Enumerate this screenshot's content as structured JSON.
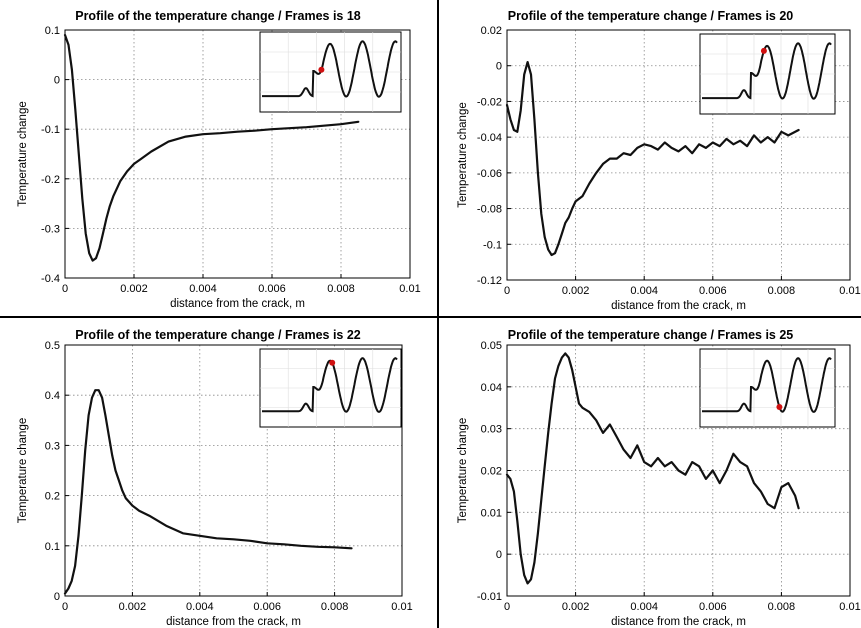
{
  "chart_data": [
    {
      "type": "line",
      "title": "Profile of the temperature change / Frames is 18",
      "xlabel": "distance from the crack, m",
      "ylabel": "Temperature change",
      "xlim": [
        0,
        0.01
      ],
      "ylim": [
        -0.4,
        0.1
      ],
      "xticks": [
        0,
        0.002,
        0.004,
        0.006,
        0.008,
        0.01
      ],
      "xtick_labels": [
        "0",
        "0.002",
        "0.004",
        "0.006",
        "0.008",
        "0.01"
      ],
      "yticks": [
        -0.4,
        -0.3,
        -0.2,
        -0.1,
        0,
        0.1
      ],
      "ytick_labels": [
        "-0.4",
        "-0.3",
        "-0.2",
        "-0.1",
        "0",
        "0.1"
      ],
      "grid": true,
      "inset_marker": {
        "position": 0.44,
        "color": "#d01010"
      },
      "series": [
        {
          "x": [
            0,
            0.0001,
            0.0002,
            0.0003,
            0.0004,
            0.0005,
            0.0006,
            0.0007,
            0.0008,
            0.0009,
            0.001,
            0.0011,
            0.0012,
            0.0013,
            0.0014,
            0.0015,
            0.0016,
            0.0018,
            0.002,
            0.0022,
            0.0025,
            0.003,
            0.0035,
            0.004,
            0.0045,
            0.005,
            0.0055,
            0.006,
            0.0065,
            0.007,
            0.0075,
            0.008,
            0.0085
          ],
          "y": [
            0.09,
            0.07,
            0.02,
            -0.06,
            -0.15,
            -0.24,
            -0.31,
            -0.35,
            -0.365,
            -0.36,
            -0.34,
            -0.31,
            -0.28,
            -0.255,
            -0.235,
            -0.22,
            -0.205,
            -0.185,
            -0.17,
            -0.16,
            -0.145,
            -0.125,
            -0.115,
            -0.11,
            -0.108,
            -0.105,
            -0.103,
            -0.1,
            -0.098,
            -0.096,
            -0.093,
            -0.09,
            -0.085
          ]
        }
      ]
    },
    {
      "type": "line",
      "title": "Profile of the temperature change / Frames is 20",
      "xlabel": "distance from the crack, m",
      "ylabel": "Temperature change",
      "xlim": [
        0,
        0.01
      ],
      "ylim": [
        -0.12,
        0.02
      ],
      "xticks": [
        0,
        0.002,
        0.004,
        0.006,
        0.008,
        0.01
      ],
      "xtick_labels": [
        "0",
        "0.002",
        "0.004",
        "0.006",
        "0.008",
        "0.01"
      ],
      "yticks": [
        -0.12,
        -0.1,
        -0.08,
        -0.06,
        -0.04,
        -0.02,
        0,
        0.02
      ],
      "ytick_labels": [
        "-0.12",
        "-0.1",
        "-0.08",
        "-0.06",
        "-0.04",
        "-0.02",
        "0",
        "0.02"
      ],
      "grid": true,
      "inset_marker": {
        "position": 0.48,
        "color": "#d01010"
      },
      "series": [
        {
          "x": [
            0,
            0.0001,
            0.0002,
            0.0003,
            0.0004,
            0.0005,
            0.0006,
            0.0007,
            0.0008,
            0.0009,
            0.001,
            0.0011,
            0.0012,
            0.0013,
            0.0014,
            0.0015,
            0.0016,
            0.0017,
            0.0018,
            0.0019,
            0.002,
            0.0022,
            0.0024,
            0.0026,
            0.0028,
            0.003,
            0.0032,
            0.0034,
            0.0036,
            0.0038,
            0.004,
            0.0042,
            0.0044,
            0.0046,
            0.0048,
            0.005,
            0.0052,
            0.0054,
            0.0056,
            0.0058,
            0.006,
            0.0062,
            0.0064,
            0.0066,
            0.0068,
            0.007,
            0.0072,
            0.0074,
            0.0076,
            0.0078,
            0.008,
            0.0082,
            0.0085
          ],
          "y": [
            -0.022,
            -0.03,
            -0.036,
            -0.037,
            -0.025,
            -0.005,
            0.002,
            -0.005,
            -0.03,
            -0.06,
            -0.083,
            -0.096,
            -0.103,
            -0.106,
            -0.105,
            -0.1,
            -0.094,
            -0.088,
            -0.085,
            -0.08,
            -0.076,
            -0.073,
            -0.066,
            -0.06,
            -0.055,
            -0.052,
            -0.052,
            -0.049,
            -0.05,
            -0.046,
            -0.044,
            -0.045,
            -0.047,
            -0.043,
            -0.046,
            -0.048,
            -0.045,
            -0.049,
            -0.044,
            -0.046,
            -0.043,
            -0.045,
            -0.041,
            -0.044,
            -0.042,
            -0.045,
            -0.039,
            -0.043,
            -0.04,
            -0.043,
            -0.037,
            -0.039,
            -0.036
          ]
        }
      ]
    },
    {
      "type": "line",
      "title": "Profile of the temperature change / Frames is 22",
      "xlabel": "distance from the crack, m",
      "ylabel": "Temperature change",
      "xlim": [
        0,
        0.01
      ],
      "ylim": [
        0,
        0.5
      ],
      "xticks": [
        0,
        0.002,
        0.004,
        0.006,
        0.008,
        0.01
      ],
      "xtick_labels": [
        "0",
        "0.002",
        "0.004",
        "0.006",
        "0.008",
        "0.01"
      ],
      "yticks": [
        0,
        0.1,
        0.2,
        0.3,
        0.4,
        0.5
      ],
      "ytick_labels": [
        "0",
        "0.1",
        "0.2",
        "0.3",
        "0.4",
        "0.5"
      ],
      "grid": true,
      "inset_marker": {
        "position": 0.52,
        "color": "#d01010"
      },
      "series": [
        {
          "x": [
            0,
            0.0001,
            0.0002,
            0.0003,
            0.0004,
            0.0005,
            0.0006,
            0.0007,
            0.0008,
            0.0009,
            0.001,
            0.0011,
            0.0012,
            0.0013,
            0.0014,
            0.0015,
            0.0016,
            0.0017,
            0.0018,
            0.002,
            0.0022,
            0.0025,
            0.003,
            0.0035,
            0.004,
            0.0045,
            0.005,
            0.0055,
            0.006,
            0.0065,
            0.007,
            0.0075,
            0.008,
            0.0085
          ],
          "y": [
            0.005,
            0.015,
            0.03,
            0.06,
            0.12,
            0.2,
            0.29,
            0.36,
            0.395,
            0.41,
            0.41,
            0.395,
            0.36,
            0.32,
            0.28,
            0.25,
            0.23,
            0.21,
            0.195,
            0.18,
            0.17,
            0.16,
            0.14,
            0.125,
            0.12,
            0.115,
            0.113,
            0.11,
            0.105,
            0.103,
            0.1,
            0.098,
            0.097,
            0.095
          ]
        }
      ]
    },
    {
      "type": "line",
      "title": "Profile of the temperature change / Frames is 25",
      "xlabel": "distance from the crack, m",
      "ylabel": "Temperature change",
      "xlim": [
        0,
        0.01
      ],
      "ylim": [
        -0.01,
        0.05
      ],
      "xticks": [
        0,
        0.002,
        0.004,
        0.006,
        0.008,
        0.01
      ],
      "xtick_labels": [
        "0",
        "0.002",
        "0.004",
        "0.006",
        "0.008",
        "0.01"
      ],
      "yticks": [
        -0.01,
        0,
        0.01,
        0.02,
        0.03,
        0.04,
        0.05
      ],
      "ytick_labels": [
        "-0.01",
        "0",
        "0.01",
        "0.02",
        "0.03",
        "0.04",
        "0.05"
      ],
      "grid": true,
      "inset_marker": {
        "position": 0.6,
        "color": "#d01010"
      },
      "series": [
        {
          "x": [
            0,
            0.0001,
            0.0002,
            0.0003,
            0.0004,
            0.0005,
            0.0006,
            0.0007,
            0.0008,
            0.0009,
            0.001,
            0.0011,
            0.0012,
            0.0013,
            0.0014,
            0.0015,
            0.0016,
            0.0017,
            0.0018,
            0.0019,
            0.002,
            0.0021,
            0.0022,
            0.0024,
            0.0026,
            0.0028,
            0.003,
            0.0032,
            0.0034,
            0.0036,
            0.0038,
            0.004,
            0.0042,
            0.0044,
            0.0046,
            0.0048,
            0.005,
            0.0052,
            0.0054,
            0.0056,
            0.0058,
            0.006,
            0.0062,
            0.0064,
            0.0066,
            0.0068,
            0.007,
            0.0072,
            0.0074,
            0.0076,
            0.0078,
            0.008,
            0.0082,
            0.0084,
            0.0085
          ],
          "y": [
            0.019,
            0.018,
            0.015,
            0.008,
            0.0,
            -0.005,
            -0.007,
            -0.006,
            -0.002,
            0.005,
            0.013,
            0.021,
            0.029,
            0.036,
            0.042,
            0.045,
            0.047,
            0.048,
            0.047,
            0.044,
            0.04,
            0.036,
            0.035,
            0.034,
            0.032,
            0.029,
            0.031,
            0.028,
            0.025,
            0.023,
            0.026,
            0.022,
            0.021,
            0.023,
            0.021,
            0.022,
            0.02,
            0.019,
            0.022,
            0.021,
            0.018,
            0.02,
            0.017,
            0.02,
            0.024,
            0.022,
            0.021,
            0.017,
            0.015,
            0.012,
            0.011,
            0.016,
            0.017,
            0.014,
            0.011
          ]
        }
      ]
    }
  ]
}
